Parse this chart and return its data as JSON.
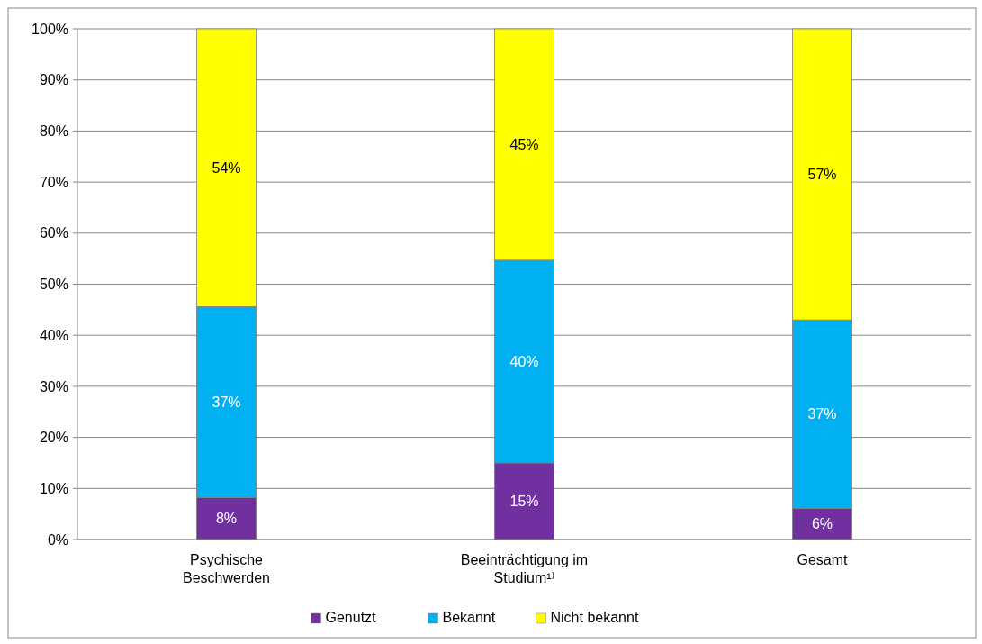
{
  "chart_data": {
    "type": "bar",
    "stacked": true,
    "categories": [
      "Psychische Beschwerden",
      "Beeinträchtigung im Studium¹⁾",
      "Gesamt"
    ],
    "series": [
      {
        "name": "Genutzt",
        "color": "#7030a0",
        "values": [
          8.2,
          15.0,
          6.1
        ],
        "value_labels": [
          "8%",
          "15%",
          "6%"
        ]
      },
      {
        "name": "Bekannt",
        "color": "#00b0f0",
        "values": [
          37.4,
          39.7,
          36.9
        ],
        "value_labels": [
          "37%",
          "40%",
          "37%"
        ]
      },
      {
        "name": "Nicht bekannt",
        "color": "#ffff00",
        "values": [
          54.4,
          45.3,
          57.0
        ],
        "value_labels": [
          "54%",
          "45%",
          "57%"
        ]
      }
    ],
    "ylim": [
      0,
      100
    ],
    "yticks": [
      {
        "value": 0,
        "label": "0%"
      },
      {
        "value": 10,
        "label": "10%"
      },
      {
        "value": 20,
        "label": "20%"
      },
      {
        "value": 30,
        "label": "30%"
      },
      {
        "value": 40,
        "label": "40%"
      },
      {
        "value": 50,
        "label": "50%"
      },
      {
        "value": 60,
        "label": "60%"
      },
      {
        "value": 70,
        "label": "70%"
      },
      {
        "value": 80,
        "label": "80%"
      },
      {
        "value": 90,
        "label": "90%"
      },
      {
        "value": 100,
        "label": "100%"
      }
    ],
    "grid": "y",
    "legend": "bottom"
  }
}
